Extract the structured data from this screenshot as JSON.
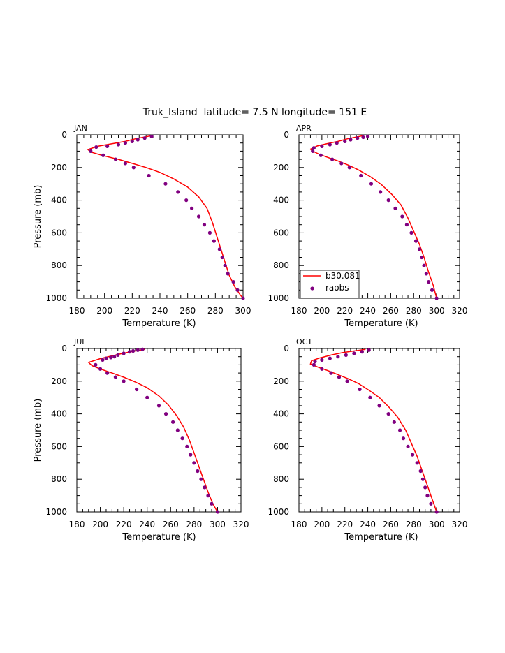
{
  "title": "Truk_Island  latitude= 7.5 N longitude= 151 E",
  "colors": {
    "model": "#ff0000",
    "obs": "#800080",
    "axis": "#000000"
  },
  "legend": {
    "panel": 1,
    "placement": "bottom-left",
    "entries": [
      {
        "label": "b30.081",
        "kind": "line",
        "series": "model"
      },
      {
        "label": "raobs",
        "kind": "marker",
        "series": "obs"
      }
    ]
  },
  "chart_data": [
    {
      "type": "line",
      "panel_label": "JAN",
      "xlabel": "Temperature (K)",
      "ylabel": "Pressure (mb)",
      "xlim": [
        180,
        300
      ],
      "xticks": [
        180,
        200,
        220,
        240,
        260,
        280,
        300
      ],
      "ylim": [
        1000,
        0
      ],
      "yticks": [
        0,
        200,
        400,
        600,
        800,
        1000
      ],
      "series": [
        {
          "name": "b30.081",
          "kind": "line",
          "points": [
            [
              234,
              5
            ],
            [
              228,
              15
            ],
            [
              222,
              25
            ],
            [
              215,
              40
            ],
            [
              205,
              55
            ],
            [
              195,
              70
            ],
            [
              188,
              90
            ],
            [
              190,
              105
            ],
            [
              198,
              125
            ],
            [
              210,
              150
            ],
            [
              220,
              175
            ],
            [
              230,
              200
            ],
            [
              240,
              230
            ],
            [
              250,
              270
            ],
            [
              260,
              320
            ],
            [
              268,
              380
            ],
            [
              274,
              450
            ],
            [
              278,
              540
            ],
            [
              281,
              620
            ],
            [
              284,
              700
            ],
            [
              287,
              780
            ],
            [
              290,
              860
            ],
            [
              294,
              930
            ],
            [
              298,
              980
            ],
            [
              300,
              1000
            ]
          ]
        },
        {
          "name": "raobs",
          "kind": "marker",
          "points": [
            [
              234,
              10
            ],
            [
              229,
              20
            ],
            [
              224,
              30
            ],
            [
              220,
              40
            ],
            [
              215,
              50
            ],
            [
              210,
              60
            ],
            [
              202,
              70
            ],
            [
              194,
              75
            ],
            [
              190,
              100
            ],
            [
              199,
              125
            ],
            [
              208,
              150
            ],
            [
              215,
              175
            ],
            [
              221,
              200
            ],
            [
              232,
              250
            ],
            [
              244,
              300
            ],
            [
              253,
              350
            ],
            [
              259,
              400
            ],
            [
              263,
              450
            ],
            [
              268,
              500
            ],
            [
              272,
              550
            ],
            [
              276,
              600
            ],
            [
              279,
              650
            ],
            [
              283,
              700
            ],
            [
              285,
              750
            ],
            [
              287,
              800
            ],
            [
              289,
              850
            ],
            [
              293,
              900
            ],
            [
              296,
              950
            ],
            [
              300,
              1000
            ]
          ]
        }
      ]
    },
    {
      "type": "line",
      "panel_label": "APR",
      "xlabel": "Temperature (K)",
      "ylabel": "",
      "xlim": [
        180,
        320
      ],
      "xticks": [
        180,
        200,
        220,
        240,
        260,
        280,
        300,
        320
      ],
      "ylim": [
        1000,
        0
      ],
      "yticks": [
        0,
        200,
        400,
        600,
        800,
        1000
      ],
      "series": [
        {
          "name": "b30.081",
          "kind": "line",
          "points": [
            [
              236,
              5
            ],
            [
              229,
              15
            ],
            [
              222,
              25
            ],
            [
              214,
              40
            ],
            [
              204,
              55
            ],
            [
              196,
              68
            ],
            [
              190,
              88
            ],
            [
              192,
              100
            ],
            [
              198,
              120
            ],
            [
              206,
              140
            ],
            [
              214,
              160
            ],
            [
              223,
              185
            ],
            [
              232,
              215
            ],
            [
              242,
              255
            ],
            [
              252,
              305
            ],
            [
              261,
              365
            ],
            [
              269,
              430
            ],
            [
              275,
              510
            ],
            [
              280,
              590
            ],
            [
              285,
              670
            ],
            [
              289,
              750
            ],
            [
              293,
              840
            ],
            [
              297,
              920
            ],
            [
              300,
              1000
            ]
          ]
        },
        {
          "name": "raobs",
          "kind": "marker",
          "points": [
            [
              240,
              10
            ],
            [
              236,
              15
            ],
            [
              231,
              20
            ],
            [
              225,
              30
            ],
            [
              220,
              40
            ],
            [
              213,
              50
            ],
            [
              207,
              60
            ],
            [
              200,
              70
            ],
            [
              193,
              80
            ],
            [
              192,
              100
            ],
            [
              199,
              125
            ],
            [
              209,
              150
            ],
            [
              217,
              175
            ],
            [
              224,
              200
            ],
            [
              234,
              250
            ],
            [
              243,
              300
            ],
            [
              251,
              350
            ],
            [
              258,
              400
            ],
            [
              264,
              450
            ],
            [
              270,
              500
            ],
            [
              274,
              550
            ],
            [
              278,
              600
            ],
            [
              282,
              650
            ],
            [
              285,
              700
            ],
            [
              287,
              750
            ],
            [
              289,
              800
            ],
            [
              291,
              850
            ],
            [
              293,
              900
            ],
            [
              296,
              950
            ],
            [
              300,
              1000
            ]
          ]
        }
      ]
    },
    {
      "type": "line",
      "panel_label": "JUL",
      "xlabel": "Temperature (K)",
      "ylabel": "Pressure (mb)",
      "xlim": [
        180,
        320
      ],
      "xticks": [
        180,
        200,
        220,
        240,
        260,
        280,
        300,
        320
      ],
      "ylim": [
        1000,
        0
      ],
      "yticks": [
        0,
        200,
        400,
        600,
        800,
        1000
      ],
      "series": [
        {
          "name": "b30.081",
          "kind": "line",
          "points": [
            [
              238,
              5
            ],
            [
              230,
              15
            ],
            [
              220,
              28
            ],
            [
              210,
              45
            ],
            [
              200,
              62
            ],
            [
              190,
              85
            ],
            [
              193,
              105
            ],
            [
              200,
              125
            ],
            [
              210,
              150
            ],
            [
              220,
              175
            ],
            [
              230,
              205
            ],
            [
              240,
              240
            ],
            [
              250,
              290
            ],
            [
              258,
              345
            ],
            [
              265,
              410
            ],
            [
              271,
              480
            ],
            [
              276,
              560
            ],
            [
              280,
              640
            ],
            [
              284,
              720
            ],
            [
              288,
              800
            ],
            [
              292,
              880
            ],
            [
              296,
              950
            ],
            [
              300,
              1000
            ]
          ]
        },
        {
          "name": "raobs",
          "kind": "marker",
          "points": [
            [
              236,
              5
            ],
            [
              232,
              10
            ],
            [
              228,
              15
            ],
            [
              225,
              20
            ],
            [
              220,
              30
            ],
            [
              215,
              40
            ],
            [
              212,
              50
            ],
            [
              209,
              55
            ],
            [
              205,
              60
            ],
            [
              202,
              70
            ],
            [
              196,
              100
            ],
            [
              200,
              125
            ],
            [
              206,
              150
            ],
            [
              213,
              175
            ],
            [
              220,
              200
            ],
            [
              231,
              250
            ],
            [
              240,
              300
            ],
            [
              250,
              350
            ],
            [
              256,
              400
            ],
            [
              262,
              450
            ],
            [
              266,
              500
            ],
            [
              270,
              550
            ],
            [
              274,
              600
            ],
            [
              277,
              650
            ],
            [
              280,
              700
            ],
            [
              283,
              750
            ],
            [
              286,
              800
            ],
            [
              289,
              850
            ],
            [
              292,
              900
            ],
            [
              295,
              950
            ],
            [
              300,
              1000
            ]
          ]
        }
      ]
    },
    {
      "type": "line",
      "panel_label": "OCT",
      "xlabel": "Temperature (K)",
      "ylabel": "",
      "xlim": [
        180,
        320
      ],
      "xticks": [
        180,
        200,
        220,
        240,
        260,
        280,
        300,
        320
      ],
      "ylim": [
        1000,
        0
      ],
      "yticks": [
        0,
        200,
        400,
        600,
        800,
        1000
      ],
      "series": [
        {
          "name": "b30.081",
          "kind": "line",
          "points": [
            [
              238,
              5
            ],
            [
              228,
              15
            ],
            [
              218,
              25
            ],
            [
              208,
              40
            ],
            [
              198,
              58
            ],
            [
              191,
              75
            ],
            [
              190,
              95
            ],
            [
              197,
              115
            ],
            [
              205,
              135
            ],
            [
              214,
              160
            ],
            [
              223,
              185
            ],
            [
              232,
              215
            ],
            [
              241,
              255
            ],
            [
              250,
              300
            ],
            [
              258,
              355
            ],
            [
              266,
              420
            ],
            [
              273,
              500
            ],
            [
              278,
              580
            ],
            [
              283,
              660
            ],
            [
              287,
              740
            ],
            [
              291,
              820
            ],
            [
              295,
              900
            ],
            [
              298,
              960
            ],
            [
              300,
              1000
            ]
          ]
        },
        {
          "name": "raobs",
          "kind": "marker",
          "points": [
            [
              241,
              10
            ],
            [
              235,
              20
            ],
            [
              228,
              30
            ],
            [
              221,
              40
            ],
            [
              214,
              50
            ],
            [
              207,
              60
            ],
            [
              200,
              70
            ],
            [
              194,
              80
            ],
            [
              193,
              100
            ],
            [
              200,
              125
            ],
            [
              208,
              150
            ],
            [
              215,
              175
            ],
            [
              222,
              200
            ],
            [
              233,
              250
            ],
            [
              242,
              300
            ],
            [
              250,
              350
            ],
            [
              258,
              400
            ],
            [
              263,
              450
            ],
            [
              268,
              500
            ],
            [
              271,
              550
            ],
            [
              275,
              600
            ],
            [
              279,
              650
            ],
            [
              283,
              700
            ],
            [
              286,
              750
            ],
            [
              288,
              800
            ],
            [
              290,
              850
            ],
            [
              292,
              900
            ],
            [
              295,
              950
            ],
            [
              300,
              1000
            ]
          ]
        }
      ]
    }
  ]
}
